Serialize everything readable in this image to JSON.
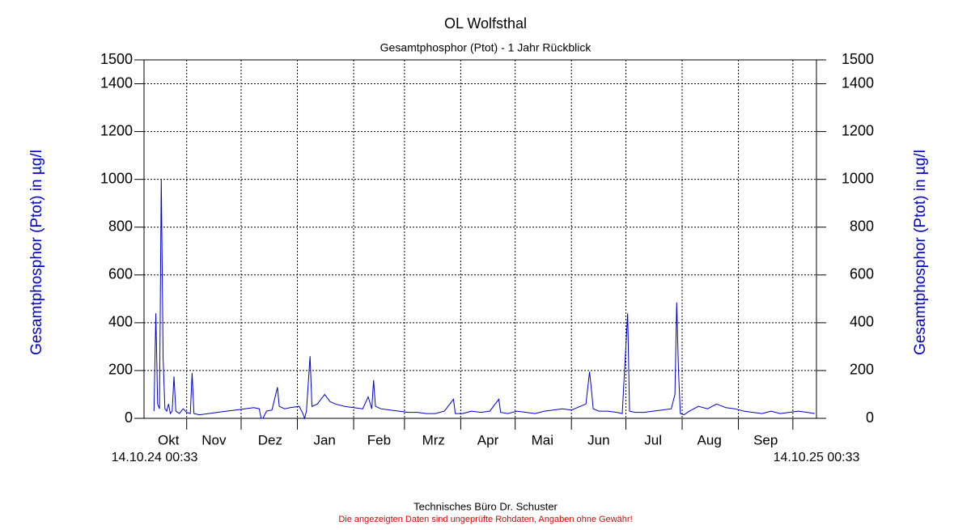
{
  "chart_data": {
    "type": "line",
    "title": "OL Wolfsthal",
    "subtitle": "Gesamtphosphor (Ptot) - 1 Jahr Rückblick",
    "y_label": "Gesamtphosphor (Ptot) in µg/l",
    "y2_label": "Gesamtphosphor (Ptot) in µg/l",
    "x_start_label": "14.10.24 00:33",
    "x_end_label": "14.10.25 00:33",
    "footer": "Technisches Büro Dr. Schuster",
    "disclaimer": "Die angezeigten Daten sind ungeprüfte Rohdaten, Angaben ohne Gewähr!",
    "xlim": [
      -5.5,
      365
    ],
    "xgrid": [
      18,
      48,
      79,
      110,
      138,
      169,
      199,
      230,
      260,
      291,
      322,
      352
    ],
    "xticks": [
      {
        "value": 8,
        "label": "Okt"
      },
      {
        "value": 33,
        "label": "Nov"
      },
      {
        "value": 64,
        "label": "Dez"
      },
      {
        "value": 94,
        "label": "Jan"
      },
      {
        "value": 124,
        "label": "Feb"
      },
      {
        "value": 154,
        "label": "Mrz"
      },
      {
        "value": 184,
        "label": "Apr"
      },
      {
        "value": 214,
        "label": "Mai"
      },
      {
        "value": 245,
        "label": "Jun"
      },
      {
        "value": 275,
        "label": "Jul"
      },
      {
        "value": 306,
        "label": "Aug"
      },
      {
        "value": 337,
        "label": "Sep"
      }
    ],
    "ylim": [
      0,
      1500
    ],
    "yticks": [
      0,
      200,
      400,
      600,
      800,
      1000,
      1200,
      1400,
      1500
    ],
    "y2lim": [
      0,
      1500
    ],
    "y2ticks": [
      0,
      200,
      400,
      600,
      800,
      1000,
      1200,
      1400,
      1500
    ],
    "grid": true,
    "x": [
      0,
      1,
      2,
      3,
      4,
      5,
      6,
      7,
      8,
      9,
      10,
      11,
      12,
      14,
      16,
      18,
      20,
      21,
      22,
      25,
      30,
      35,
      40,
      45,
      50,
      55,
      58,
      59,
      60,
      62,
      65,
      68,
      69,
      72,
      75,
      80,
      82,
      83,
      84,
      86,
      87,
      90,
      94,
      97,
      100,
      105,
      110,
      115,
      118,
      120,
      121,
      122,
      125,
      130,
      135,
      140,
      145,
      150,
      155,
      160,
      165,
      166,
      170,
      175,
      180,
      185,
      190,
      191,
      195,
      200,
      205,
      210,
      215,
      220,
      225,
      230,
      238,
      240,
      241,
      242,
      245,
      250,
      255,
      258,
      261,
      262,
      265,
      270,
      275,
      280,
      285,
      287,
      288,
      289,
      290,
      292,
      295,
      300,
      305,
      310,
      315,
      320,
      325,
      330,
      335,
      340,
      345,
      350,
      355,
      360,
      364
    ],
    "series": [
      {
        "name": "Gesamtphosphor",
        "color": "#0000cc",
        "values": [
          30,
          440,
          60,
          40,
          1000,
          250,
          40,
          30,
          60,
          20,
          30,
          175,
          30,
          20,
          40,
          25,
          20,
          190,
          20,
          15,
          20,
          25,
          30,
          35,
          40,
          45,
          40,
          0,
          0,
          30,
          35,
          130,
          50,
          40,
          45,
          50,
          20,
          0,
          30,
          260,
          50,
          60,
          100,
          70,
          60,
          50,
          45,
          40,
          90,
          40,
          160,
          50,
          40,
          35,
          30,
          25,
          25,
          20,
          20,
          30,
          80,
          20,
          20,
          30,
          25,
          30,
          80,
          25,
          20,
          30,
          25,
          20,
          30,
          35,
          40,
          35,
          60,
          195,
          120,
          40,
          30,
          30,
          25,
          20,
          440,
          30,
          25,
          25,
          30,
          35,
          40,
          100,
          485,
          200,
          20,
          15,
          30,
          50,
          40,
          60,
          45,
          40,
          30,
          25,
          20,
          30,
          20,
          25,
          30,
          25,
          20
        ]
      }
    ]
  }
}
